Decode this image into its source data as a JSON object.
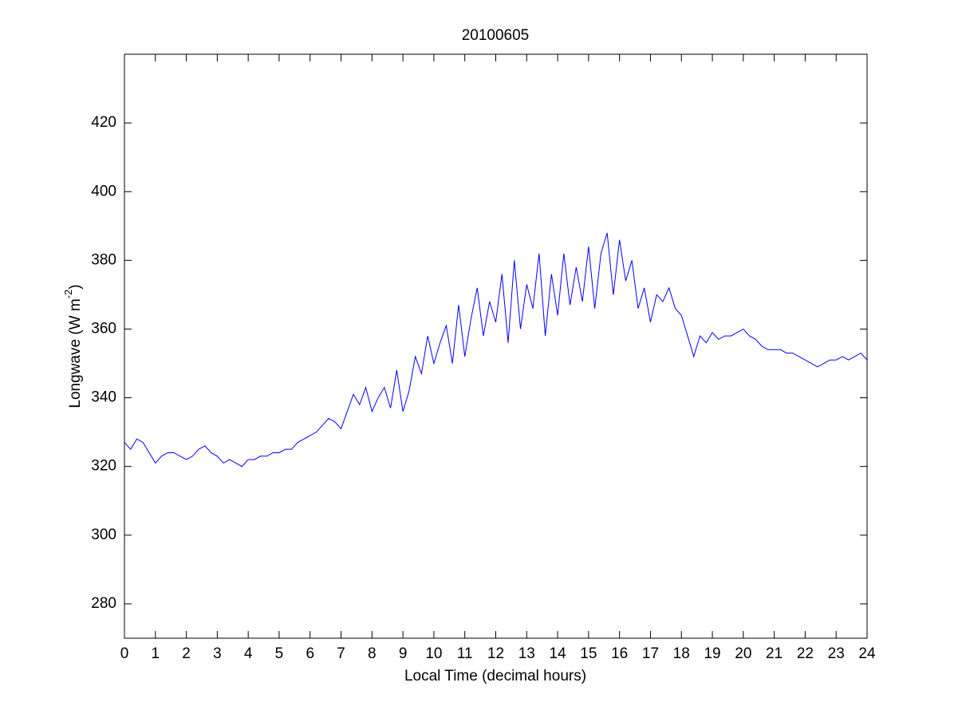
{
  "chart_data": {
    "type": "line",
    "title": "20100605",
    "xlabel": "Local Time (decimal hours)",
    "ylabel": [
      "Longwave (W m",
      "-2",
      ")"
    ],
    "xlim": [
      0,
      24
    ],
    "xticks": [
      0,
      1,
      2,
      3,
      4,
      5,
      6,
      7,
      8,
      9,
      10,
      11,
      12,
      13,
      14,
      15,
      16,
      17,
      18,
      19,
      20,
      21,
      22,
      23,
      24
    ],
    "ylim": [
      270,
      440
    ],
    "yticks": [
      280,
      300,
      320,
      340,
      360,
      380,
      400,
      420
    ],
    "x": [
      0,
      0.2,
      0.4,
      0.6,
      0.8,
      1,
      1.2,
      1.4,
      1.6,
      1.8,
      2,
      2.2,
      2.4,
      2.6,
      2.8,
      3,
      3.2,
      3.4,
      3.6,
      3.8,
      4,
      4.2,
      4.4,
      4.6,
      4.8,
      5,
      5.2,
      5.4,
      5.6,
      5.8,
      6,
      6.2,
      6.4,
      6.6,
      6.8,
      7,
      7.2,
      7.4,
      7.6,
      7.8,
      8,
      8.2,
      8.4,
      8.6,
      8.8,
      9,
      9.2,
      9.4,
      9.6,
      9.8,
      10,
      10.2,
      10.4,
      10.6,
      10.8,
      11,
      11.2,
      11.4,
      11.6,
      11.8,
      12,
      12.2,
      12.4,
      12.6,
      12.8,
      13,
      13.2,
      13.4,
      13.6,
      13.8,
      14,
      14.2,
      14.4,
      14.6,
      14.8,
      15,
      15.2,
      15.4,
      15.6,
      15.8,
      16,
      16.2,
      16.4,
      16.6,
      16.8,
      17,
      17.2,
      17.4,
      17.6,
      17.8,
      18,
      18.2,
      18.4,
      18.6,
      18.8,
      19,
      19.2,
      19.4,
      19.6,
      19.8,
      20,
      20.2,
      20.4,
      20.6,
      20.8,
      21,
      21.2,
      21.4,
      21.6,
      21.8,
      22,
      22.2,
      22.4,
      22.6,
      22.8,
      23,
      23.2,
      23.4,
      23.6,
      23.8,
      24
    ],
    "series": [
      {
        "color": "#0000ff",
        "values": [
          327,
          325,
          328,
          327,
          324,
          321,
          323,
          324,
          324,
          323,
          322,
          323,
          325,
          326,
          324,
          323,
          321,
          322,
          321,
          320,
          322,
          322,
          323,
          323,
          324,
          324,
          325,
          325,
          327,
          328,
          329,
          330,
          332,
          334,
          333,
          331,
          336,
          341,
          338,
          343,
          336,
          340,
          343,
          337,
          348,
          336,
          342,
          352,
          347,
          358,
          350,
          356,
          361,
          350,
          367,
          352,
          363,
          372,
          358,
          368,
          362,
          376,
          356,
          380,
          360,
          373,
          366,
          382,
          358,
          376,
          364,
          382,
          367,
          378,
          368,
          384,
          366,
          382,
          388,
          370,
          386,
          374,
          380,
          366,
          372,
          362,
          370,
          368,
          372,
          366,
          364,
          358,
          352,
          358,
          356,
          359,
          357,
          358,
          358,
          359,
          360,
          358,
          357,
          355,
          354,
          354,
          354,
          353,
          353,
          352,
          351,
          350,
          349,
          350,
          351,
          351,
          352,
          351,
          352,
          353,
          351
        ]
      }
    ]
  }
}
